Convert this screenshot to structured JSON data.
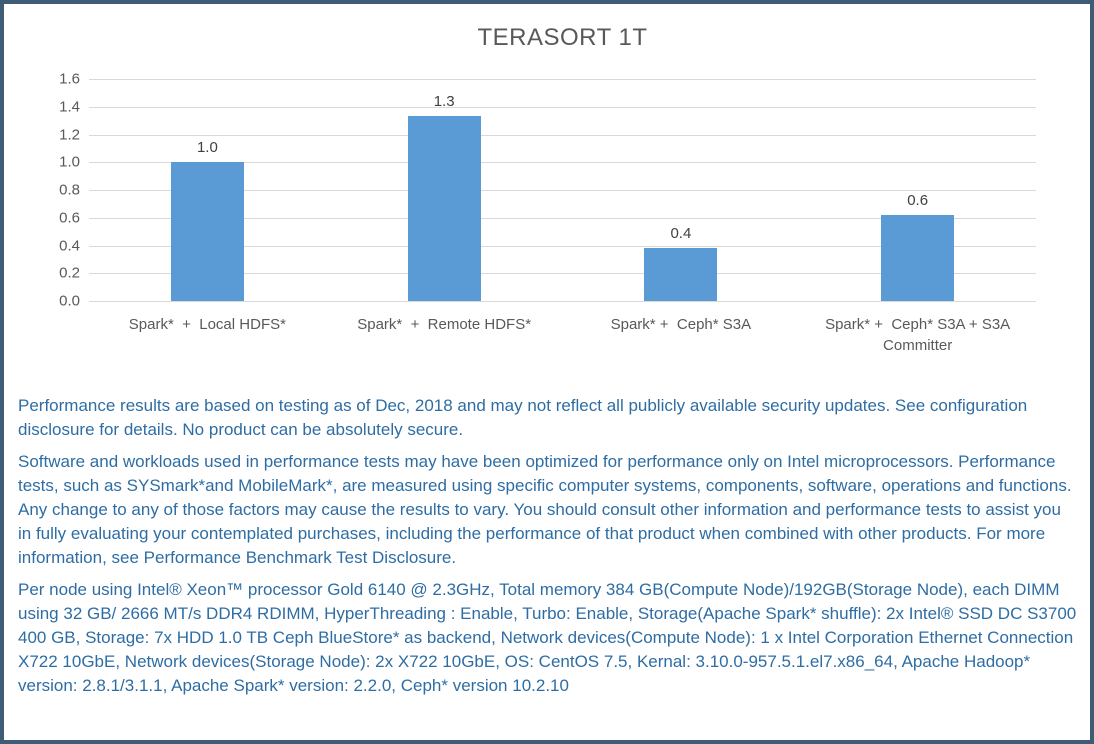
{
  "frame": {
    "border_color": "#3E5C76",
    "background_color": "#ffffff"
  },
  "chart_data": {
    "type": "bar",
    "title": "TERASORT 1T",
    "categories": [
      "Spark*  +  Local HDFS*",
      "Spark*  +  Remote HDFS*",
      "Spark* +  Ceph* S3A",
      "Spark* +  Ceph* S3A + S3A\nCommitter"
    ],
    "values": [
      1.0,
      1.33,
      0.38,
      0.62
    ],
    "data_labels": [
      "1.0",
      "1.3",
      "0.4",
      "0.6"
    ],
    "xlabel": "",
    "ylabel": "",
    "ylim": [
      0,
      1.6
    ],
    "ytick_labels": [
      "0.0",
      "0.2",
      "0.4",
      "0.6",
      "0.8",
      "1.0",
      "1.2",
      "1.4",
      "1.6"
    ],
    "grid": true,
    "legend": "none",
    "bar_color": "#5B9BD5",
    "gridline_color": "#D9D9D9",
    "axis_label_color": "#595959",
    "title_color": "#595959",
    "data_label_color": "#404040"
  },
  "disclaimer": {
    "text_color": "#2E6DA4",
    "paragraphs": [
      "Performance results are based on testing as of Dec, 2018 and may not reflect all publicly available security updates. See configuration disclosure for details. No product can be absolutely secure.",
      "Software and workloads used in performance tests may have been optimized for performance only on Intel microprocessors. Performance tests, such as SYSmark*and MobileMark*, are measured using specific computer systems, components, software, operations and functions. Any change to any of those factors may cause the results to vary. You should consult other information and performance tests to assist you in fully evaluating your contemplated purchases, including the performance of that product when combined with other products. For more information, see Performance Benchmark Test Disclosure.",
      "Per node using Intel® Xeon™ processor Gold 6140 @ 2.3GHz, Total memory 384 GB(Compute Node)/192GB(Storage Node), each DIMM using 32 GB/ 2666 MT/s DDR4 RDIMM, HyperThreading : Enable, Turbo: Enable, Storage(Apache Spark* shuffle): 2x Intel® SSD DC S3700 400 GB, Storage: 7x HDD 1.0 TB Ceph BlueStore* as backend, Network devices(Compute Node): 1 x Intel Corporation Ethernet Connection X722 10GbE, Network devices(Storage Node): 2x X722 10GbE, OS: CentOS 7.5, Kernal: 3.10.0-957.5.1.el7.x86_64, Apache Hadoop* version: 2.8.1/3.1.1, Apache Spark* version: 2.2.0, Ceph* version 10.2.10"
    ]
  }
}
